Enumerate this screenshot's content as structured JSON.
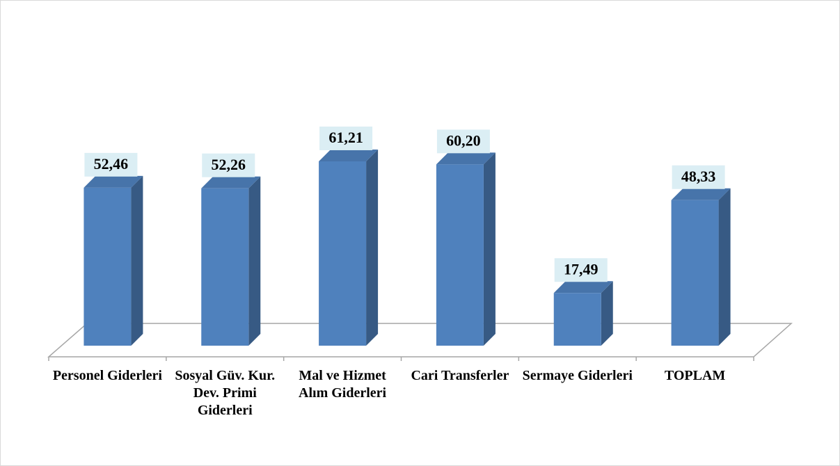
{
  "chart_data": {
    "type": "bar3d",
    "categories": [
      "Personel Giderleri",
      "Sosyal Güv. Kur. Dev. Primi Giderleri",
      "Mal ve Hizmet Alım Giderleri",
      "Cari Transferler",
      "Sermaye Giderleri",
      "TOPLAM"
    ],
    "values": [
      52.46,
      52.26,
      61.21,
      60.2,
      17.49,
      48.33
    ],
    "value_labels": [
      "52,46",
      "52,26",
      "61,21",
      "60,20",
      "17,49",
      "48,33"
    ],
    "color": "#4f81bd"
  }
}
